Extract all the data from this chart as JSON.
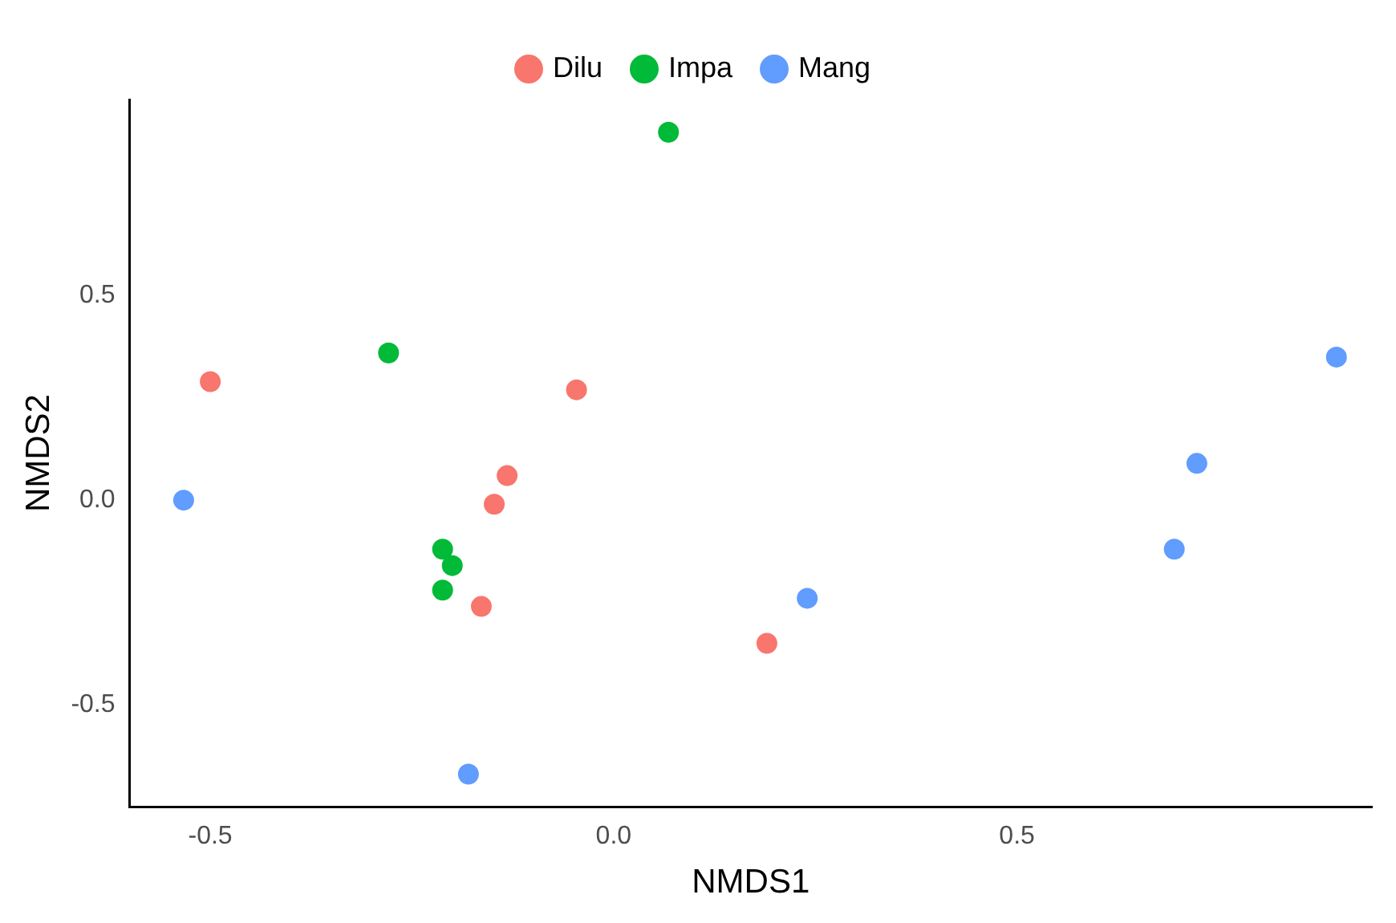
{
  "chart_data": {
    "type": "scatter",
    "xlabel": "NMDS1",
    "ylabel": "NMDS2",
    "legend": "top",
    "marker": "circle",
    "grid": false,
    "xlim": [
      -0.6,
      0.94
    ],
    "ylim": [
      -0.75,
      0.98
    ],
    "xticks": [
      -0.5,
      {
        "value": 0,
        "label": "0.0"
      },
      0.5
    ],
    "yticks": [
      -0.5,
      {
        "value": 0,
        "label": "0.0"
      },
      0.5
    ],
    "series": [
      {
        "name": "Dilu",
        "color": "#f8766d",
        "x": [
          -0.5,
          -0.046,
          -0.132,
          -0.148,
          -0.164,
          0.19
        ],
        "values": [
          0.29,
          0.27,
          0.06,
          -0.01,
          -0.26,
          -0.35
        ]
      },
      {
        "name": "Impa",
        "color": "#00ba38",
        "x": [
          0.068,
          -0.279,
          -0.212,
          -0.204,
          -0.2,
          -0.212
        ],
        "values": [
          0.9,
          0.36,
          -0.12,
          null,
          -0.16,
          -0.22
        ]
      },
      {
        "name": "Mang",
        "color": "#619cff",
        "x": [
          -0.533,
          0.896,
          0.723,
          0.695,
          0.24,
          -0.18
        ],
        "values": [
          0.0,
          0.35,
          0.09,
          -0.12,
          -0.24,
          -0.67
        ]
      }
    ]
  }
}
